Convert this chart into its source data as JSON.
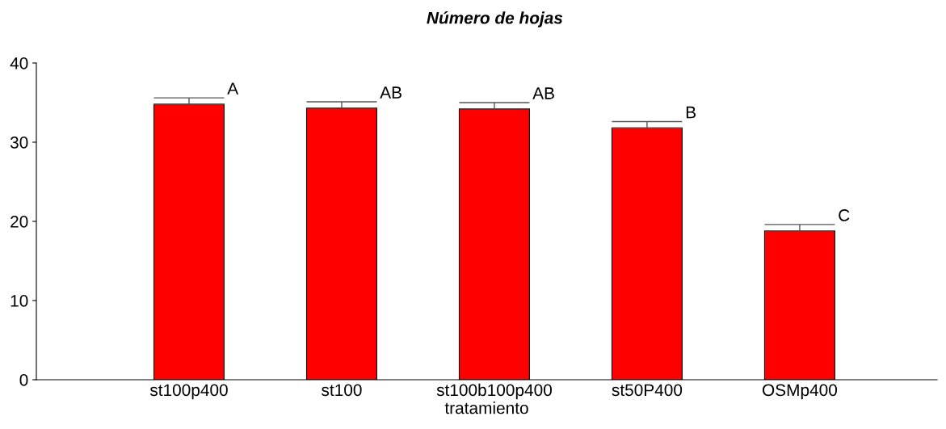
{
  "chart_data": {
    "type": "bar",
    "title": "Número de hojas",
    "xlabel": "tratamiento",
    "categories": [
      "st100p400",
      "st100",
      "st100b100p400",
      "st50P400",
      "OSMp400"
    ],
    "values": [
      34.8,
      34.3,
      34.2,
      31.8,
      18.8
    ],
    "errors": [
      [
        34.8,
        35.6
      ],
      [
        34.3,
        35.1
      ],
      [
        34.2,
        35.0
      ],
      [
        31.8,
        32.6
      ],
      [
        18.8,
        19.6
      ]
    ],
    "color": "#ff0000",
    "ylim": [
      0,
      40
    ],
    "yticks": [
      0,
      10,
      20,
      30,
      40
    ],
    "grid": false,
    "legend": false,
    "annotations": [
      {
        "text": "A",
        "x": "st100p400",
        "y": 35.6
      },
      {
        "text": "AB",
        "x": "st100",
        "y": 35.1
      },
      {
        "text": "AB",
        "x": "st100b100p400",
        "y": 35.0
      },
      {
        "text": "B",
        "x": "st50P400",
        "y": 32.6
      },
      {
        "text": "C",
        "x": "OSMp400",
        "y": 19.6
      }
    ]
  }
}
